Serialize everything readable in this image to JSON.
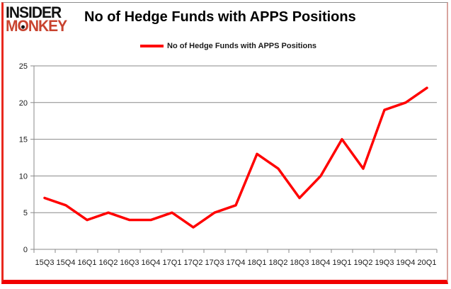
{
  "logo": {
    "line1": "INSIDER",
    "line2_m": "M",
    "line2_o": "O",
    "line2_rest": "NKEY",
    "monkey_color": "#c8432f",
    "insider_color": "#111111"
  },
  "header": {
    "title": "No of Hedge Funds with APPS Positions"
  },
  "legend": {
    "label": "No of Hedge Funds with APPS Positions",
    "line_color": "#ff0000"
  },
  "chart_data": {
    "type": "line",
    "title": "No of Hedge Funds with APPS Positions",
    "categories": [
      "15Q3",
      "15Q4",
      "16Q1",
      "16Q2",
      "16Q3",
      "16Q4",
      "17Q1",
      "17Q2",
      "17Q3",
      "17Q4",
      "18Q1",
      "18Q2",
      "18Q3",
      "18Q4",
      "19Q1",
      "19Q2",
      "19Q3",
      "19Q4",
      "20Q1"
    ],
    "series": [
      {
        "name": "No of Hedge Funds with APPS Positions",
        "color": "#ff0000",
        "values": [
          7,
          6,
          4,
          5,
          4,
          4,
          5,
          3,
          5,
          6,
          13,
          11,
          7,
          10,
          15,
          11,
          19,
          20,
          22
        ]
      }
    ],
    "xlabel": "",
    "ylabel": "",
    "ylim": [
      0,
      25
    ],
    "yticks": [
      0,
      5,
      10,
      15,
      20,
      25
    ],
    "grid": true,
    "legend_position": "top-center"
  },
  "colors": {
    "grid": "#898989",
    "axis": "#898989",
    "tick": "#898989",
    "label": "#1a1a1a"
  }
}
